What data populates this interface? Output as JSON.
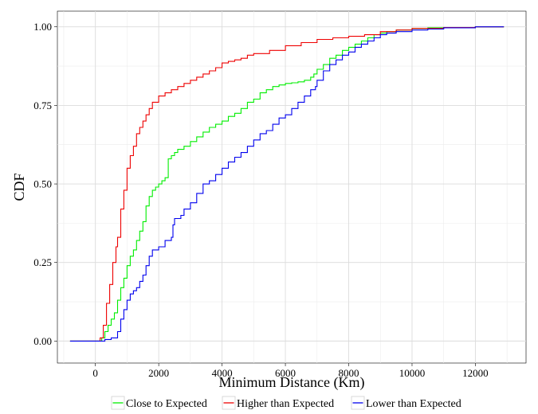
{
  "chart_data": {
    "type": "line",
    "title": "",
    "xlabel": "Minimum Distance (Km)",
    "ylabel": "CDF",
    "xlim": [
      -1200,
      13600
    ],
    "ylim": [
      -0.07,
      1.05
    ],
    "x_ticks": [
      0,
      2000,
      4000,
      6000,
      8000,
      10000,
      12000
    ],
    "x_tick_labels": [
      "0",
      "2000",
      "4000",
      "6000",
      "8000",
      "10000",
      "12000"
    ],
    "y_ticks": [
      0.0,
      0.25,
      0.5,
      0.75,
      1.0
    ],
    "y_tick_labels": [
      "0.00",
      "0.25",
      "0.50",
      "0.75",
      "1.00"
    ],
    "grid": true,
    "legend_position": "bottom",
    "series": [
      {
        "name": "Close to Expected",
        "color": "#00ee00",
        "points": [
          [
            -800,
            0
          ],
          [
            100,
            0
          ],
          [
            200,
            0.01
          ],
          [
            300,
            0.03
          ],
          [
            400,
            0.05
          ],
          [
            500,
            0.07
          ],
          [
            600,
            0.09
          ],
          [
            700,
            0.13
          ],
          [
            800,
            0.17
          ],
          [
            900,
            0.2
          ],
          [
            1000,
            0.24
          ],
          [
            1100,
            0.27
          ],
          [
            1200,
            0.29
          ],
          [
            1300,
            0.32
          ],
          [
            1400,
            0.35
          ],
          [
            1500,
            0.38
          ],
          [
            1600,
            0.43
          ],
          [
            1700,
            0.46
          ],
          [
            1800,
            0.48
          ],
          [
            1900,
            0.49
          ],
          [
            2000,
            0.5
          ],
          [
            2100,
            0.51
          ],
          [
            2200,
            0.52
          ],
          [
            2300,
            0.58
          ],
          [
            2400,
            0.59
          ],
          [
            2500,
            0.6
          ],
          [
            2600,
            0.61
          ],
          [
            2800,
            0.62
          ],
          [
            3000,
            0.635
          ],
          [
            3200,
            0.65
          ],
          [
            3400,
            0.665
          ],
          [
            3600,
            0.68
          ],
          [
            3800,
            0.69
          ],
          [
            4000,
            0.7
          ],
          [
            4200,
            0.715
          ],
          [
            4400,
            0.725
          ],
          [
            4600,
            0.74
          ],
          [
            4800,
            0.76
          ],
          [
            5000,
            0.77
          ],
          [
            5200,
            0.79
          ],
          [
            5400,
            0.8
          ],
          [
            5600,
            0.81
          ],
          [
            5800,
            0.815
          ],
          [
            6000,
            0.82
          ],
          [
            6200,
            0.822
          ],
          [
            6400,
            0.825
          ],
          [
            6600,
            0.83
          ],
          [
            6800,
            0.84
          ],
          [
            6900,
            0.85
          ],
          [
            7000,
            0.865
          ],
          [
            7200,
            0.88
          ],
          [
            7400,
            0.9
          ],
          [
            7600,
            0.91
          ],
          [
            7800,
            0.925
          ],
          [
            8000,
            0.935
          ],
          [
            8200,
            0.945
          ],
          [
            8400,
            0.955
          ],
          [
            8600,
            0.965
          ],
          [
            8800,
            0.975
          ],
          [
            9000,
            0.98
          ],
          [
            9200,
            0.985
          ],
          [
            9500,
            0.99
          ],
          [
            10000,
            0.995
          ],
          [
            10500,
            0.997
          ],
          [
            11000,
            0.998
          ],
          [
            12000,
            1.0
          ],
          [
            12900,
            1.0
          ]
        ]
      },
      {
        "name": "Higher than Expected",
        "color": "#ee0000",
        "points": [
          [
            -800,
            0
          ],
          [
            50,
            0
          ],
          [
            150,
            0.01
          ],
          [
            250,
            0.05
          ],
          [
            350,
            0.12
          ],
          [
            450,
            0.18
          ],
          [
            550,
            0.25
          ],
          [
            650,
            0.3
          ],
          [
            700,
            0.33
          ],
          [
            800,
            0.42
          ],
          [
            900,
            0.48
          ],
          [
            1000,
            0.55
          ],
          [
            1100,
            0.59
          ],
          [
            1200,
            0.62
          ],
          [
            1300,
            0.66
          ],
          [
            1400,
            0.68
          ],
          [
            1500,
            0.7
          ],
          [
            1600,
            0.72
          ],
          [
            1700,
            0.74
          ],
          [
            1800,
            0.76
          ],
          [
            2000,
            0.78
          ],
          [
            2200,
            0.79
          ],
          [
            2400,
            0.8
          ],
          [
            2600,
            0.81
          ],
          [
            2800,
            0.82
          ],
          [
            3000,
            0.83
          ],
          [
            3200,
            0.84
          ],
          [
            3400,
            0.85
          ],
          [
            3600,
            0.86
          ],
          [
            3800,
            0.87
          ],
          [
            4000,
            0.885
          ],
          [
            4200,
            0.89
          ],
          [
            4400,
            0.895
          ],
          [
            4600,
            0.9
          ],
          [
            4800,
            0.91
          ],
          [
            5000,
            0.915
          ],
          [
            5500,
            0.925
          ],
          [
            6000,
            0.94
          ],
          [
            6500,
            0.95
          ],
          [
            7000,
            0.96
          ],
          [
            7500,
            0.965
          ],
          [
            8000,
            0.97
          ],
          [
            8500,
            0.975
          ],
          [
            9000,
            0.985
          ],
          [
            9500,
            0.99
          ],
          [
            10000,
            0.995
          ],
          [
            11000,
            0.998
          ],
          [
            12000,
            1.0
          ],
          [
            12900,
            1.0
          ]
        ]
      },
      {
        "name": "Lower than Expected",
        "color": "#0000ee",
        "points": [
          [
            -800,
            0
          ],
          [
            150,
            0
          ],
          [
            300,
            0.005
          ],
          [
            500,
            0.01
          ],
          [
            700,
            0.03
          ],
          [
            800,
            0.07
          ],
          [
            900,
            0.1
          ],
          [
            1000,
            0.13
          ],
          [
            1100,
            0.15
          ],
          [
            1200,
            0.16
          ],
          [
            1300,
            0.17
          ],
          [
            1400,
            0.19
          ],
          [
            1500,
            0.21
          ],
          [
            1600,
            0.24
          ],
          [
            1700,
            0.27
          ],
          [
            1800,
            0.29
          ],
          [
            2000,
            0.3
          ],
          [
            2200,
            0.32
          ],
          [
            2400,
            0.33
          ],
          [
            2450,
            0.37
          ],
          [
            2500,
            0.39
          ],
          [
            2700,
            0.4
          ],
          [
            2800,
            0.42
          ],
          [
            3000,
            0.44
          ],
          [
            3200,
            0.47
          ],
          [
            3400,
            0.5
          ],
          [
            3600,
            0.51
          ],
          [
            3800,
            0.53
          ],
          [
            4000,
            0.55
          ],
          [
            4200,
            0.57
          ],
          [
            4400,
            0.585
          ],
          [
            4600,
            0.6
          ],
          [
            4800,
            0.62
          ],
          [
            5000,
            0.64
          ],
          [
            5200,
            0.66
          ],
          [
            5400,
            0.67
          ],
          [
            5600,
            0.69
          ],
          [
            5800,
            0.71
          ],
          [
            6000,
            0.72
          ],
          [
            6200,
            0.74
          ],
          [
            6400,
            0.76
          ],
          [
            6600,
            0.78
          ],
          [
            6800,
            0.8
          ],
          [
            6950,
            0.81
          ],
          [
            7000,
            0.83
          ],
          [
            7200,
            0.86
          ],
          [
            7400,
            0.88
          ],
          [
            7600,
            0.895
          ],
          [
            7800,
            0.91
          ],
          [
            8000,
            0.92
          ],
          [
            8200,
            0.935
          ],
          [
            8400,
            0.945
          ],
          [
            8600,
            0.955
          ],
          [
            8800,
            0.965
          ],
          [
            9000,
            0.975
          ],
          [
            9200,
            0.98
          ],
          [
            9500,
            0.985
          ],
          [
            10000,
            0.99
          ],
          [
            10500,
            0.993
          ],
          [
            11000,
            0.997
          ],
          [
            12000,
            1.0
          ],
          [
            12900,
            1.0
          ]
        ]
      }
    ]
  }
}
